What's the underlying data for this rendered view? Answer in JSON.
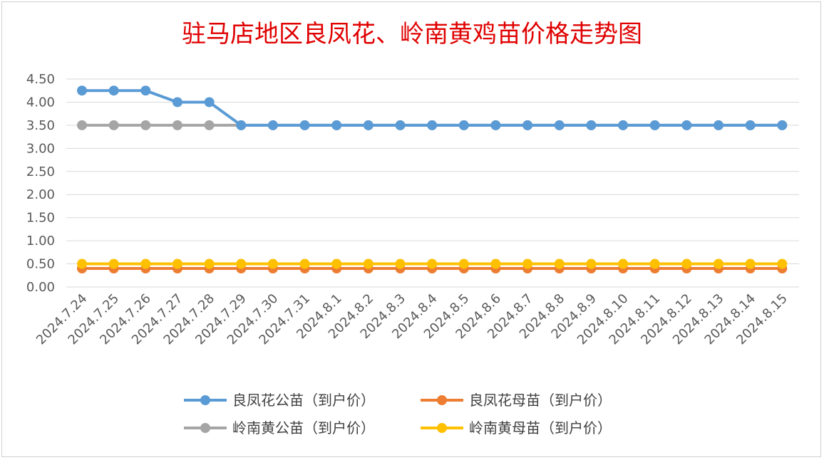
{
  "chart_data": {
    "type": "line",
    "title": "驻马店地区良凤花、岭南黄鸡苗价格走势图",
    "xlabel": "",
    "ylabel": "",
    "ylim": [
      0,
      4.5
    ],
    "y_ticks": [
      "0.00",
      "0.50",
      "1.00",
      "1.50",
      "2.00",
      "2.50",
      "3.00",
      "3.50",
      "4.00",
      "4.50"
    ],
    "grid": true,
    "legend_position": "bottom",
    "categories": [
      "2024.7.24",
      "2024.7.25",
      "2024.7.26",
      "2024.7.27",
      "2024.7.28",
      "2024.7.29",
      "2024.7.30",
      "2024.7.31",
      "2024.8.1",
      "2024.8.2",
      "2024.8.3",
      "2024.8.4",
      "2024.8.5",
      "2024.8.6",
      "2024.8.7",
      "2024.8.8",
      "2024.8.9",
      "2024.8.10",
      "2024.8.11",
      "2024.8.12",
      "2024.8.13",
      "2024.8.14",
      "2024.8.15"
    ],
    "series": [
      {
        "name": "良凤花公苗（到户价）",
        "color": "#5b9bd5",
        "values": [
          4.25,
          4.25,
          4.25,
          4.0,
          4.0,
          3.5,
          3.5,
          3.5,
          3.5,
          3.5,
          3.5,
          3.5,
          3.5,
          3.5,
          3.5,
          3.5,
          3.5,
          3.5,
          3.5,
          3.5,
          3.5,
          3.5,
          3.5
        ]
      },
      {
        "name": "良凤花母苗（到户价）",
        "color": "#ed7d31",
        "values": [
          0.4,
          0.4,
          0.4,
          0.4,
          0.4,
          0.4,
          0.4,
          0.4,
          0.4,
          0.4,
          0.4,
          0.4,
          0.4,
          0.4,
          0.4,
          0.4,
          0.4,
          0.4,
          0.4,
          0.4,
          0.4,
          0.4,
          0.4
        ]
      },
      {
        "name": "岭南黄公苗（到户价）",
        "color": "#a5a5a5",
        "values": [
          3.5,
          3.5,
          3.5,
          3.5,
          3.5,
          3.5,
          3.5,
          3.5,
          3.5,
          3.5,
          3.5,
          3.5,
          3.5,
          3.5,
          3.5,
          3.5,
          3.5,
          3.5,
          3.5,
          3.5,
          3.5,
          3.5,
          3.5
        ]
      },
      {
        "name": "岭南黄母苗（到户价）",
        "color": "#ffc000",
        "values": [
          0.5,
          0.5,
          0.5,
          0.5,
          0.5,
          0.5,
          0.5,
          0.5,
          0.5,
          0.5,
          0.5,
          0.5,
          0.5,
          0.5,
          0.5,
          0.5,
          0.5,
          0.5,
          0.5,
          0.5,
          0.5,
          0.5,
          0.5
        ]
      }
    ]
  }
}
